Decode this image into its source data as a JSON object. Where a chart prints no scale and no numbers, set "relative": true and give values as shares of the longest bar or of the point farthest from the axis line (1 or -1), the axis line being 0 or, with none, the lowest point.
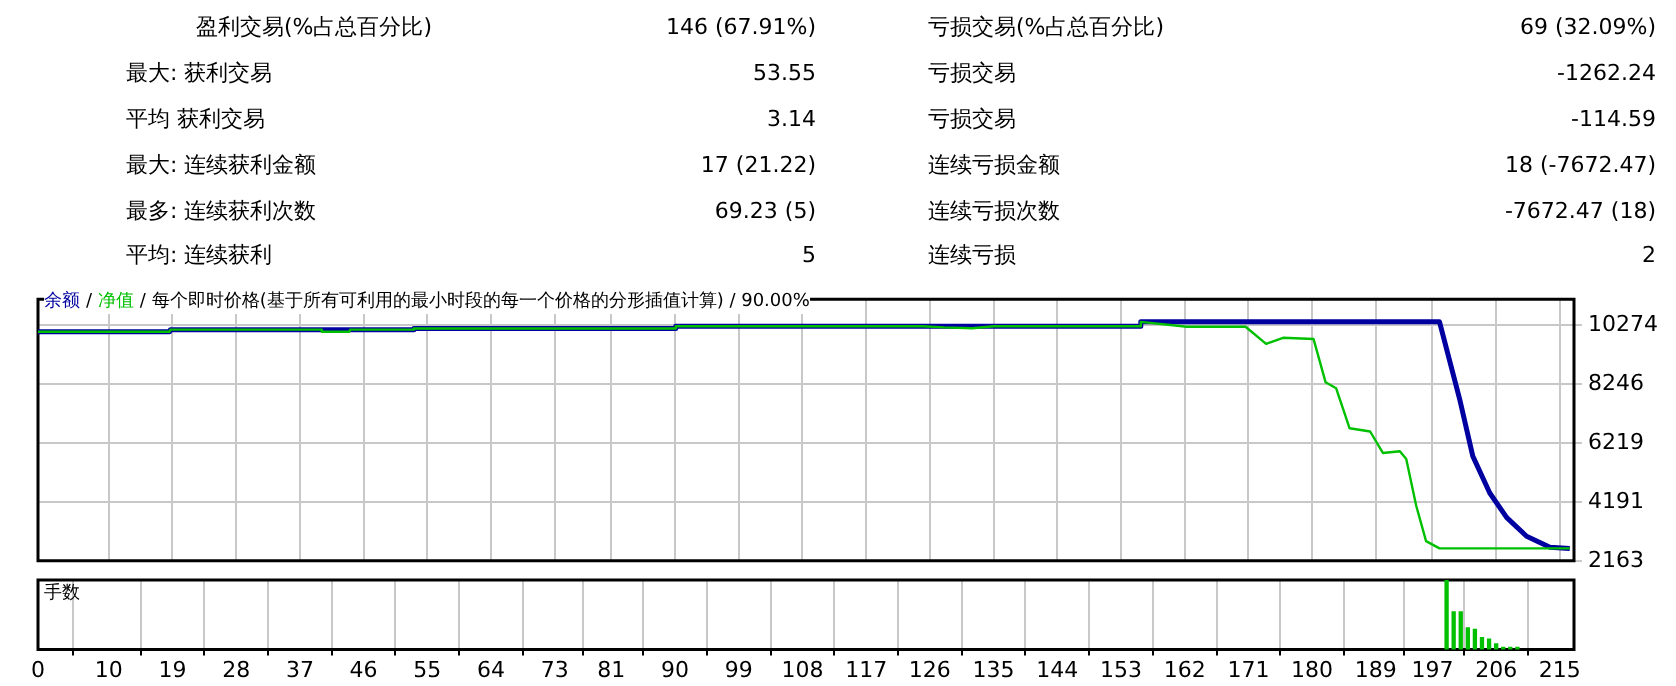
{
  "chart_data": [
    {
      "type": "other",
      "annotations": [
        "盈利交易(%占总百分比)",
        "146 (67.91%)",
        "亏损交易(%占总百分比)",
        "69 (32.09%)",
        "最大: 获利交易",
        "53.55",
        "亏损交易",
        "-1262.24",
        "平均 获利交易",
        "3.14",
        "亏损交易",
        "-114.59",
        "最大: 连续获利金额",
        "17 (21.22)",
        "连续亏损金额",
        "18 (-7672.47)",
        "最多: 连续获利次数",
        "69.23 (5)",
        "连续亏损次数",
        "-7672.47 (18)",
        "平均: 连续获利",
        "5",
        "连续亏损",
        "2"
      ]
    },
    {
      "type": "line",
      "annotations": [
        "/"
      ],
      "title": "/ 每个即时价格(基于所有可利用的最小时段的每一个价格的分形插值计算) / 90.00%",
      "legend": "top left",
      "grid": true,
      "tick_labels": "y",
      "line_style": "solid",
      "xlim": [
        0,
        217
      ],
      "xticks": [
        0,
        10,
        19,
        28,
        37,
        46,
        55,
        64,
        73,
        81,
        90,
        99,
        108,
        117,
        126,
        135,
        144,
        153,
        162,
        171,
        180,
        189,
        197,
        206,
        215
      ],
      "ylim": [
        2163,
        11180
      ],
      "yticks": [
        2163,
        4191,
        6219,
        8246,
        10274
      ],
      "series": [
        {
          "name": "余额",
          "color": "#0000a0",
          "x": [
            0,
            18.6,
            18.7,
            53,
            53.1,
            90,
            90.1,
            155.7,
            155.8,
            198,
            200.9,
            202.7,
            205.1,
            207.5,
            210.3,
            213.6,
            216.4
          ],
          "values": [
            10060,
            10060,
            10130,
            10130,
            10170,
            10170,
            10250,
            10250,
            10400,
            10400,
            7680,
            5770,
            4500,
            3650,
            3010,
            2630,
            2590
          ]
        },
        {
          "name": "净值",
          "color": "#00c000",
          "x": [
            0,
            18.6,
            18.7,
            40,
            40.1,
            44,
            44.1,
            53,
            53.1,
            90,
            90.1,
            125,
            128,
            132,
            135,
            155.7,
            155.8,
            162.3,
            170.6,
            173.5,
            175.9,
            180.2,
            181.9,
            183.4,
            185.3,
            188.2,
            190,
            192.4,
            193.3,
            194.7,
            196.1,
            198,
            213.6,
            216.4
          ],
          "values": [
            10060,
            10060,
            10130,
            10130,
            10060,
            10060,
            10130,
            10130,
            10170,
            10170,
            10250,
            10250,
            10210,
            10180,
            10250,
            10250,
            10400,
            10230,
            10230,
            9640,
            9850,
            9810,
            8320,
            8110,
            6730,
            6620,
            5880,
            5940,
            5670,
            4070,
            2840,
            2590,
            2590,
            2590
          ]
        }
      ]
    },
    {
      "type": "bar",
      "title": "手数",
      "relative": true,
      "color": "#00c000",
      "grid": "x",
      "tick_labels": "x",
      "xlim": [
        0,
        217
      ],
      "xticks": [
        0,
        10,
        19,
        28,
        37,
        46,
        55,
        64,
        73,
        81,
        90,
        99,
        108,
        117,
        126,
        135,
        144,
        153,
        162,
        171,
        180,
        189,
        197,
        206,
        215
      ],
      "x": [
        199,
        200,
        201,
        202,
        203,
        204,
        205,
        206,
        207,
        208,
        209
      ],
      "values": [
        1,
        0.54,
        0.54,
        0.31,
        0.29,
        0.17,
        0.15,
        0.08,
        0.03,
        0.03,
        0.03
      ]
    }
  ]
}
